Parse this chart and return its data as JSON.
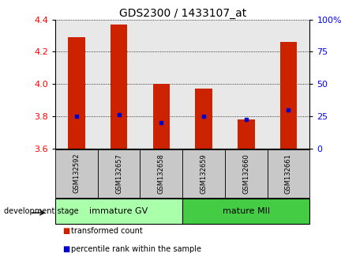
{
  "title": "GDS2300 / 1433107_at",
  "samples": [
    "GSM132592",
    "GSM132657",
    "GSM132658",
    "GSM132659",
    "GSM132660",
    "GSM132661"
  ],
  "red_values": [
    4.29,
    4.37,
    4.0,
    3.97,
    3.78,
    4.26
  ],
  "blue_values": [
    3.8,
    3.81,
    3.762,
    3.8,
    3.778,
    3.84
  ],
  "ylim": [
    3.6,
    4.4
  ],
  "yticks_left": [
    3.6,
    3.8,
    4.0,
    4.2,
    4.4
  ],
  "yticks_right_vals": [
    0,
    25,
    50,
    75,
    100
  ],
  "yticks_right_labels": [
    "0",
    "25",
    "50",
    "75",
    "100%"
  ],
  "groups": [
    {
      "label": "immature GV",
      "start": 0,
      "end": 3,
      "color": "#aaffaa"
    },
    {
      "label": "mature MII",
      "start": 3,
      "end": 6,
      "color": "#44cc44"
    }
  ],
  "bar_color": "#cc2200",
  "marker_color": "#0000cc",
  "bg_plot": "#e8e8e8",
  "bg_label": "#c8c8c8",
  "legend_red": "transformed count",
  "legend_blue": "percentile rank within the sample",
  "dev_stage_label": "development stage",
  "title_fontsize": 10,
  "tick_fontsize": 8,
  "sample_fontsize": 6,
  "group_fontsize": 8,
  "legend_fontsize": 7
}
